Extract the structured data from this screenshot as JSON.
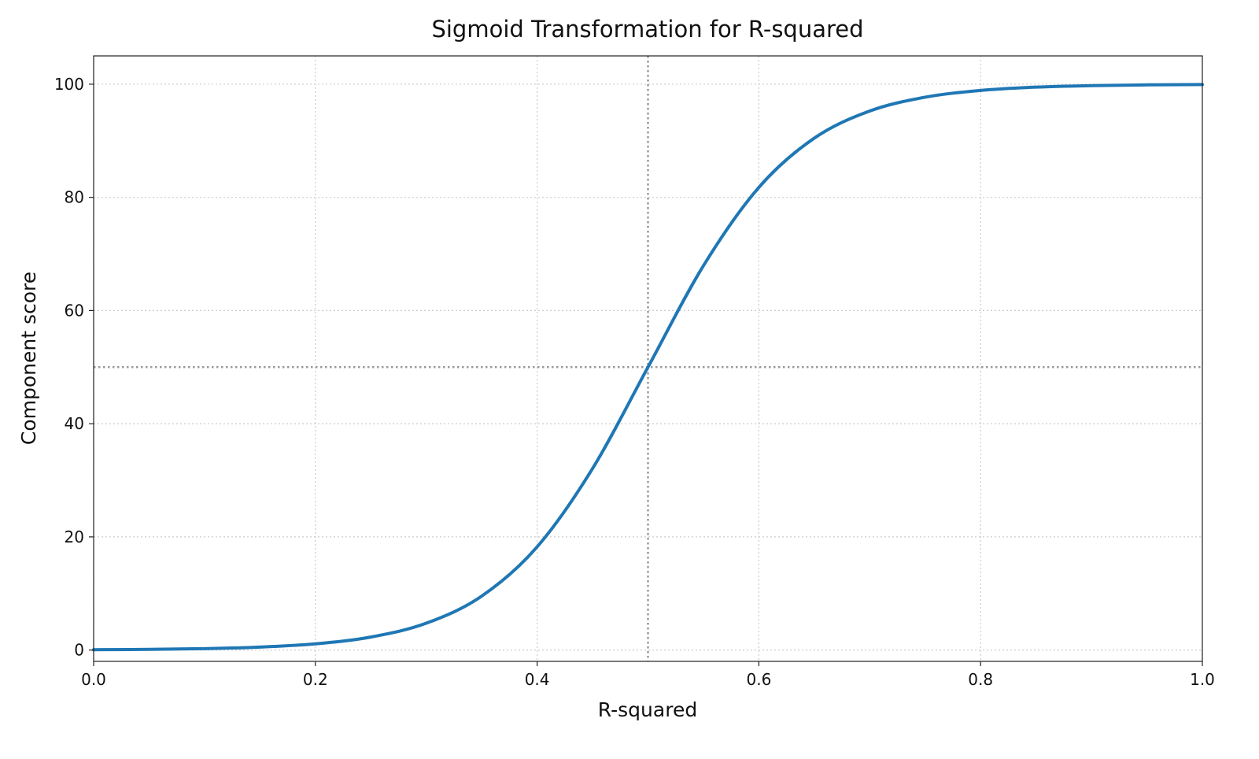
{
  "chart_data": {
    "type": "line",
    "title": "Sigmoid Transformation for R-squared",
    "xlabel": "R-squared",
    "ylabel": "Component score",
    "xlim": [
      0,
      1
    ],
    "ylim": [
      -2,
      105
    ],
    "xticks": [
      0.0,
      0.2,
      0.4,
      0.6,
      0.8,
      1.0
    ],
    "xtick_labels": [
      "0.0",
      "0.2",
      "0.4",
      "0.6",
      "0.8",
      "1.0"
    ],
    "yticks": [
      0,
      20,
      40,
      60,
      80,
      100
    ],
    "ytick_labels": [
      "0",
      "20",
      "40",
      "60",
      "80",
      "100"
    ],
    "grid": true,
    "reference_lines": {
      "x": 0.5,
      "y": 50,
      "color": "#999999",
      "style": "dotted"
    },
    "series": [
      {
        "color": "#1f77b4",
        "x": [
          0,
          0.05,
          0.1,
          0.15,
          0.2,
          0.25,
          0.3,
          0.35,
          0.4,
          0.45,
          0.5,
          0.55,
          0.6,
          0.65,
          0.7,
          0.75,
          0.8,
          0.85,
          0.9,
          0.95,
          1.0
        ],
        "y": [
          0.06,
          0.12,
          0.25,
          0.52,
          1.1,
          2.3,
          4.74,
          9.53,
          18.24,
          32.08,
          50.0,
          67.92,
          81.76,
          90.47,
          95.26,
          97.7,
          98.9,
          99.48,
          99.75,
          99.88,
          99.94
        ]
      }
    ]
  }
}
